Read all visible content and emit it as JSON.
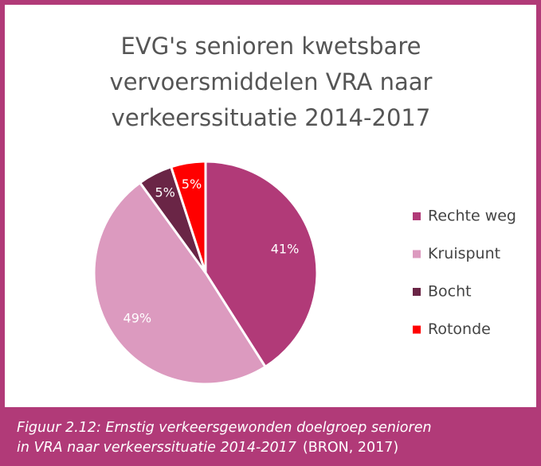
{
  "chart_data": {
    "type": "pie",
    "title": [
      "EVG's senioren kwetsbare",
      "vervoersmiddelen VRA naar",
      "verkeerssituatie 2014-2017"
    ],
    "categories": [
      "Rechte weg",
      "Kruispunt",
      "Bocht",
      "Rotonde"
    ],
    "values": [
      41,
      49,
      5,
      5
    ],
    "value_labels": [
      "41%",
      "49%",
      "5%",
      "5%"
    ],
    "colors": [
      "#b13a78",
      "#dc9abf",
      "#6a2546",
      "#ff0000"
    ],
    "legend": "right"
  },
  "caption": {
    "lines": [
      "Figuur 2.12: Ernstig verkeersgewonden doelgroep senioren",
      "in VRA naar verkeerssituatie 2014-2017"
    ],
    "source": "(BRON, 2017)"
  }
}
